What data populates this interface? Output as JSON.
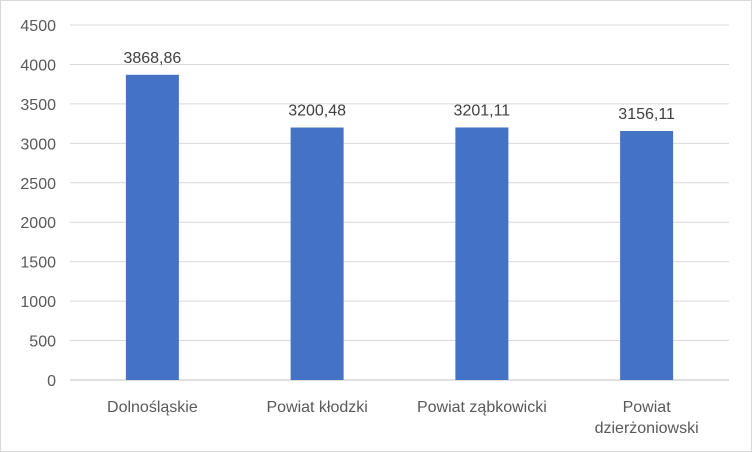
{
  "chart_data": {
    "type": "bar",
    "title": "",
    "xlabel": "",
    "ylabel": "",
    "categories": [
      [
        "Dolnośląskie"
      ],
      [
        "Powiat kłodzki"
      ],
      [
        "Powiat ząbkowicki"
      ],
      [
        "Powiat",
        "dzierżoniowski"
      ]
    ],
    "values": [
      3868.86,
      3200.48,
      3201.11,
      3156.11
    ],
    "data_labels": [
      "3868,86",
      "3200,48",
      "3201,11",
      "3156,11"
    ],
    "ylim": [
      0,
      4500
    ],
    "yticks": [
      0,
      500,
      1000,
      1500,
      2000,
      2500,
      3000,
      3500,
      4000,
      4500
    ],
    "grid": true,
    "legend": "none",
    "bar_color": "#4472C4",
    "grid_color": "#d9d9d9"
  }
}
